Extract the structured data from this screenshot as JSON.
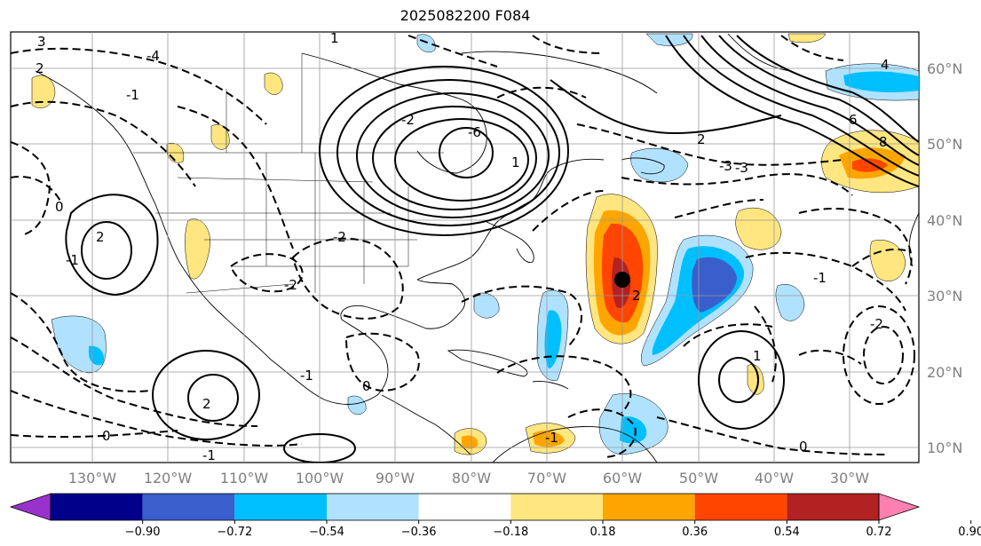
{
  "title": "2025082200 F084",
  "map": {
    "longitude_labels": [
      "130°W",
      "120°W",
      "110°W",
      "100°W",
      "90°W",
      "80°W",
      "70°W",
      "60°W",
      "50°W",
      "40°W",
      "30°W"
    ],
    "latitude_labels": [
      "60°N",
      "50°N",
      "40°N",
      "30°N",
      "20°N",
      "10°N"
    ],
    "contour_labels": [
      "3",
      "2",
      "1",
      "-1",
      "-2",
      "-3",
      "-4",
      "-6",
      "4",
      "6",
      "8",
      "0",
      "-1",
      "2",
      "-2",
      "-1",
      "1",
      "2",
      "-1",
      "0",
      "2",
      "-1",
      "-2",
      "1",
      "0",
      "-1",
      "-2",
      "0",
      "-3",
      "2"
    ]
  },
  "colorbar": {
    "ticks": [
      "−0.90",
      "−0.72",
      "−0.54",
      "−0.36",
      "−0.18",
      "0.18",
      "0.36",
      "0.54",
      "0.72",
      "0.90"
    ],
    "colors": [
      "#9932cc",
      "#00008b",
      "#3a5fcd",
      "#00bfff",
      "#b0e2ff",
      "#ffffff",
      "#ffe680",
      "#ffa500",
      "#ff4500",
      "#b22222",
      "#ff7fb0"
    ]
  },
  "colors": {
    "strong_positive": "#ff4500",
    "positive": "#ffa500",
    "weak_positive": "#ffe680",
    "weak_negative": "#b0e2ff",
    "negative": "#00bfff",
    "strong_negative": "#3a5fcd",
    "marker": "#000000"
  }
}
